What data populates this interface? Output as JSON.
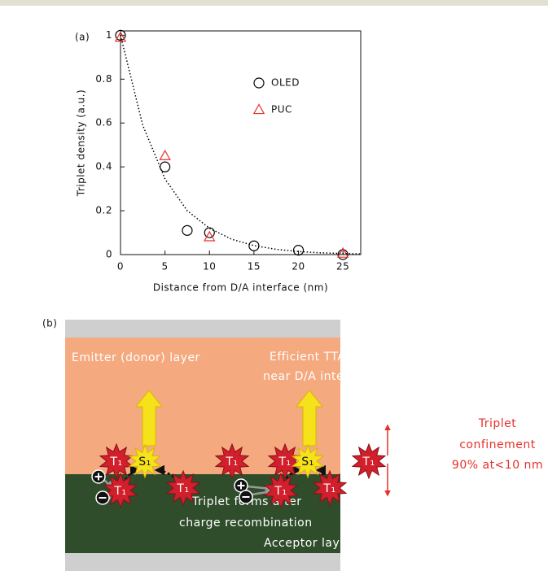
{
  "chart_data": {
    "type": "scatter",
    "panel_label": "(a)",
    "x_label": "Distance from D/A interface (nm)",
    "y_label": "Triplet density (a.u.)",
    "xlim": [
      0,
      27
    ],
    "ylim": [
      0,
      1.02
    ],
    "xticks": [
      0,
      5,
      10,
      15,
      20,
      25
    ],
    "yticks": [
      0,
      0.2,
      0.4,
      0.6,
      0.8,
      1
    ],
    "legend": "upper right",
    "series": [
      {
        "name": "OLED",
        "marker": "circle",
        "color": "#000000",
        "x": [
          0,
          5,
          7.5,
          10,
          15,
          20,
          25
        ],
        "values": [
          1,
          0.4,
          0.11,
          0.1,
          0.04,
          0.02,
          0
        ]
      },
      {
        "name": "PUC",
        "marker": "triangle",
        "color": "#e8302a",
        "x": [
          0,
          5,
          10,
          25
        ],
        "values": [
          0.99,
          0.45,
          0.08,
          0.005
        ]
      },
      {
        "marker": "dotted-line",
        "color": "#000000",
        "x": [
          0,
          2.5,
          5,
          7.5,
          10,
          12.5,
          15,
          17.5,
          20,
          22.5,
          25,
          27
        ],
        "values": [
          1,
          0.59,
          0.345,
          0.2,
          0.12,
          0.07,
          0.041,
          0.024,
          0.014,
          0.008,
          0.005,
          0.003
        ]
      }
    ]
  },
  "diagram": {
    "panel_label": "(b)",
    "emitter_layer": "Emitter (donor) layer",
    "acceptor_layer": "Acceptor layer",
    "efficient": [
      "Efficient TTA-UC",
      "near D/A interface"
    ],
    "forms": [
      "Triplet forms after",
      "charge recombination"
    ],
    "confinement": [
      "Triplet",
      "confinement",
      "90% at<10 nm"
    ],
    "states": [
      "T₁",
      "T₁",
      "S₁",
      "T₁",
      "T₁",
      "T₁",
      "T₁",
      "S₁",
      "T₁",
      "T₁"
    ]
  }
}
